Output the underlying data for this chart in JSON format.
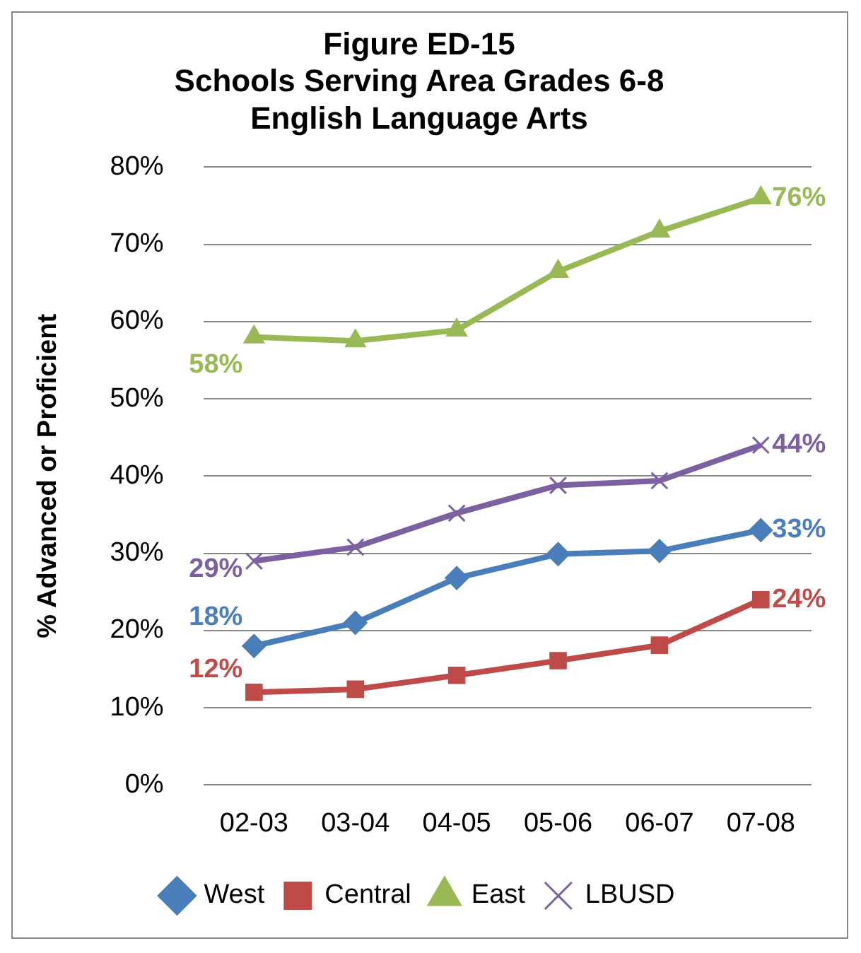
{
  "chart_data": {
    "type": "line",
    "title": "Figure ED-15\nSchools Serving Area Grades 6-8\nEnglish Language Arts",
    "ylabel": "% Advanced or Proficient",
    "categories": [
      "02-03",
      "03-04",
      "04-05",
      "05-06",
      "06-07",
      "07-08"
    ],
    "series": [
      {
        "name": "West",
        "color": "#4a7ebb",
        "marker": "diamond",
        "values": [
          18,
          21,
          26.8,
          29.9,
          30.3,
          33
        ],
        "value_labels": [
          "18%",
          null,
          null,
          null,
          null,
          "33%"
        ]
      },
      {
        "name": "Central",
        "color": "#be4b48",
        "marker": "square",
        "values": [
          12,
          12.4,
          14.2,
          16.1,
          18.1,
          24
        ],
        "value_labels": [
          "12%",
          null,
          null,
          null,
          null,
          "24%"
        ]
      },
      {
        "name": "East",
        "color": "#98b954",
        "marker": "triangle",
        "values": [
          58,
          57.5,
          58.9,
          66.5,
          71.7,
          76
        ],
        "value_labels": [
          "58%",
          null,
          null,
          null,
          null,
          "76%"
        ]
      },
      {
        "name": "LBUSD",
        "color": "#7d60a0",
        "marker": "cross",
        "values": [
          29,
          30.8,
          35.2,
          38.8,
          39.4,
          44
        ],
        "value_labels": [
          "29%",
          null,
          null,
          null,
          null,
          "44%"
        ]
      }
    ],
    "ylim": [
      0,
      80
    ],
    "yticks": [
      {
        "value": 0,
        "label": "0%"
      },
      {
        "value": 10,
        "label": "10%"
      },
      {
        "value": 20,
        "label": "20%"
      },
      {
        "value": 30,
        "label": "30%"
      },
      {
        "value": 40,
        "label": "40%"
      },
      {
        "value": 50,
        "label": "50%"
      },
      {
        "value": 60,
        "label": "60%"
      },
      {
        "value": 70,
        "label": "70%"
      },
      {
        "value": 80,
        "label": "80%"
      }
    ],
    "grid": "y",
    "legend": "bottom",
    "line_style": "solid"
  }
}
